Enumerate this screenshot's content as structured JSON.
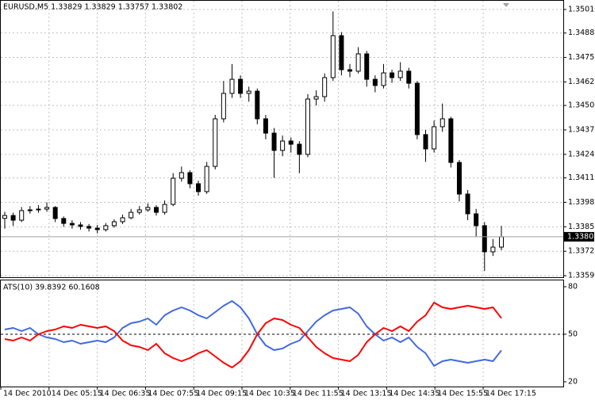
{
  "chart_data": [
    {
      "type": "candlestick",
      "title": "EURUSD,M5  1.33829 1.33829 1.33757 1.33802",
      "time_labels": [
        "14 Dec 2010",
        "14 Dec 05:15",
        "14 Dec 06:35",
        "14 Dec 07:55",
        "14 Dec 09:15",
        "14 Dec 10:35",
        "14 Dec 11:55",
        "14 Dec 13:15",
        "14 Dec 14:35",
        "14 Dec 15:55",
        "14 Dec 17:15"
      ],
      "open": [
        1.339,
        1.33915,
        1.3389,
        1.33941,
        1.33945,
        1.33949,
        1.33958,
        1.33899,
        1.33873,
        1.33865,
        1.33857,
        1.33848,
        1.3384,
        1.33861,
        1.33882,
        1.33903,
        1.33932,
        1.33945,
        1.33958,
        1.33932,
        1.33974,
        1.34113,
        1.34143,
        1.34084,
        1.34042,
        1.34176,
        1.34429,
        1.34564,
        1.34639,
        1.34564,
        1.34576,
        1.34429,
        1.34353,
        1.34261,
        1.34311,
        1.34294,
        1.3424,
        1.34534,
        1.34547,
        1.34648,
        1.34871,
        1.3469,
        1.34682,
        1.34774,
        1.34639,
        1.34606,
        1.34673,
        1.34648,
        1.34682,
        1.34618,
        1.34345,
        1.34269,
        1.34387,
        1.34429,
        1.34197,
        1.34029,
        1.33924,
        1.33861,
        1.33722,
        1.33747
      ],
      "high": [
        1.33935,
        1.3393,
        1.3396,
        1.33965,
        1.3397,
        1.33985,
        1.33965,
        1.3391,
        1.3389,
        1.3388,
        1.3387,
        1.33865,
        1.33875,
        1.33895,
        1.3392,
        1.3395,
        1.33965,
        1.3398,
        1.3397,
        1.33995,
        1.3414,
        1.34175,
        1.34155,
        1.341,
        1.342,
        1.3445,
        1.3463,
        1.3472,
        1.3466,
        1.346,
        1.3459,
        1.3445,
        1.3438,
        1.3434,
        1.3433,
        1.3431,
        1.3456,
        1.3458,
        1.3467,
        1.35,
        1.3489,
        1.3472,
        1.3481,
        1.3479,
        1.3466,
        1.3472,
        1.3469,
        1.3473,
        1.347,
        1.3463,
        1.3437,
        1.3442,
        1.3451,
        1.3444,
        1.3421,
        1.3405,
        1.3395,
        1.3388,
        1.3379,
        1.3386
      ],
      "low": [
        1.33845,
        1.3386,
        1.3388,
        1.33925,
        1.3393,
        1.33935,
        1.3388,
        1.33855,
        1.33845,
        1.3384,
        1.3383,
        1.3382,
        1.3383,
        1.3385,
        1.3387,
        1.33895,
        1.3392,
        1.33935,
        1.33915,
        1.3392,
        1.33965,
        1.34095,
        1.3406,
        1.3402,
        1.3403,
        1.3416,
        1.3441,
        1.3454,
        1.3454,
        1.3452,
        1.344,
        1.3432,
        1.34115,
        1.3423,
        1.3425,
        1.3414,
        1.34225,
        1.345,
        1.3452,
        1.3463,
        1.3466,
        1.3465,
        1.3467,
        1.346,
        1.3457,
        1.3459,
        1.3462,
        1.3463,
        1.3459,
        1.3432,
        1.342,
        1.3425,
        1.3436,
        1.3417,
        1.3399,
        1.3389,
        1.338,
        1.3362,
        1.337,
        1.3373
      ],
      "close": [
        1.33915,
        1.3389,
        1.33941,
        1.33945,
        1.33949,
        1.33958,
        1.33899,
        1.33873,
        1.33865,
        1.33857,
        1.33848,
        1.3384,
        1.33861,
        1.33882,
        1.33903,
        1.33932,
        1.33945,
        1.33958,
        1.33932,
        1.33974,
        1.34113,
        1.34143,
        1.34084,
        1.34042,
        1.34176,
        1.34429,
        1.34564,
        1.34639,
        1.34564,
        1.34576,
        1.34429,
        1.34353,
        1.34261,
        1.34311,
        1.34294,
        1.3424,
        1.34534,
        1.34547,
        1.34648,
        1.34871,
        1.3469,
        1.34682,
        1.34774,
        1.34639,
        1.34606,
        1.34673,
        1.34648,
        1.34682,
        1.34618,
        1.34345,
        1.34269,
        1.34387,
        1.34429,
        1.34197,
        1.34029,
        1.33924,
        1.33861,
        1.33722,
        1.33747,
        1.33802
      ],
      "color": "#000000",
      "last_price": 1.33802,
      "ylim": [
        1.33587,
        1.35052
      ],
      "yticks": [
        {
          "value": 1.3501,
          "label": "1.35010"
        },
        {
          "value": 1.34885,
          "label": "1.34885"
        },
        {
          "value": 1.34755,
          "label": "1.34755"
        },
        {
          "value": 1.34625,
          "label": "1.34625"
        },
        {
          "value": 1.345,
          "label": "1.34500"
        },
        {
          "value": 1.3437,
          "label": "1.34370"
        },
        {
          "value": 1.3424,
          "label": "1.34240"
        },
        {
          "value": 1.34115,
          "label": "1.34115"
        },
        {
          "value": 1.33985,
          "label": "1.33985"
        },
        {
          "value": 1.33855,
          "label": "1.33855"
        },
        {
          "value": 1.33725,
          "label": "1.33725"
        },
        {
          "value": 1.33595,
          "label": "1.33595"
        }
      ],
      "grid": true
    },
    {
      "type": "line",
      "title": "ATS(10) 39.8392 60.1608",
      "series": [
        {
          "color": "#4169e1",
          "values": [
            53,
            54,
            52,
            54,
            50,
            48,
            47,
            45,
            46,
            44,
            45,
            46,
            45,
            48,
            54,
            57,
            58,
            60,
            56,
            62,
            65,
            67,
            65,
            62,
            60,
            64,
            68,
            71,
            67,
            60,
            50,
            43,
            40,
            41,
            44,
            46,
            52,
            58,
            62,
            65,
            66,
            67,
            63,
            55,
            50,
            46,
            48,
            45,
            48,
            42,
            38,
            30,
            33,
            34,
            33,
            32,
            33,
            34,
            33,
            39.8392
          ]
        },
        {
          "color": "#ff0000",
          "values": [
            47,
            46,
            48,
            46,
            50,
            52,
            53,
            55,
            54,
            56,
            55,
            54,
            55,
            52,
            46,
            43,
            42,
            40,
            44,
            38,
            35,
            33,
            35,
            38,
            40,
            36,
            32,
            29,
            33,
            40,
            50,
            57,
            60,
            59,
            56,
            54,
            48,
            42,
            38,
            35,
            34,
            33,
            37,
            45,
            50,
            54,
            52,
            55,
            52,
            58,
            62,
            70,
            67,
            66,
            67,
            68,
            67,
            66,
            67,
            60.1608
          ]
        }
      ],
      "ylim": [
        17,
        83.5
      ],
      "yticks": [
        20,
        50,
        80
      ],
      "levels": [
        50
      ]
    }
  ]
}
